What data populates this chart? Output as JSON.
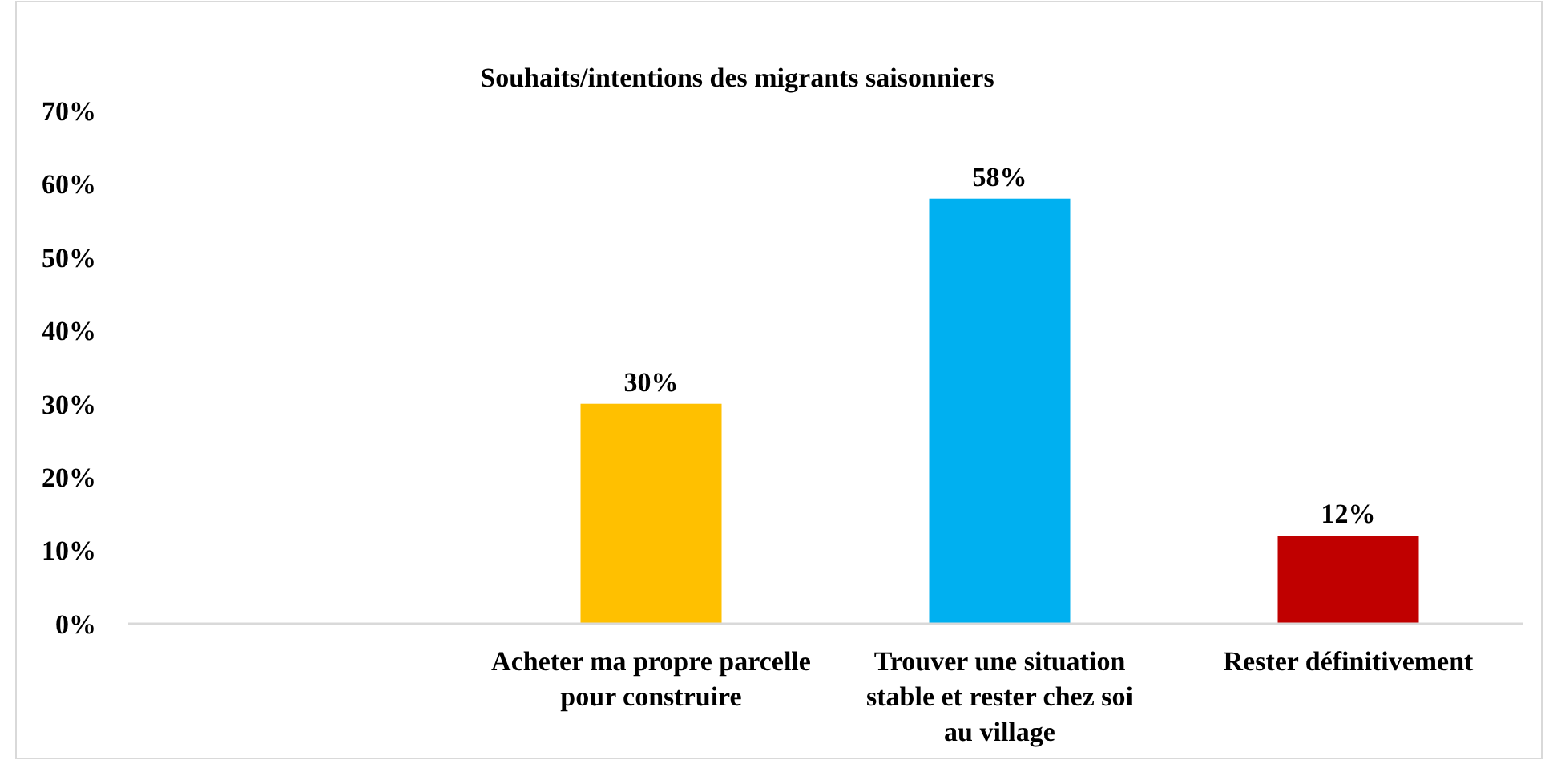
{
  "chart_data": {
    "type": "bar",
    "title": "Souhaits/intentions des migrants saisonniers",
    "categories": [
      null,
      "Acheter ma propre parcelle pour construire",
      "Trouver une situation stable et rester chez soi au village",
      "Rester définitivement"
    ],
    "values": [
      null,
      30,
      58,
      12
    ],
    "colors": [
      null,
      "#ffc000",
      "#00b0f0",
      "#c00000"
    ],
    "value_labels": [
      null,
      "30%",
      "58%",
      "12%"
    ],
    "ylim": [
      0,
      70
    ],
    "yticks": [
      {
        "value": 0,
        "label": "0%"
      },
      {
        "value": 10,
        "label": "10%"
      },
      {
        "value": 20,
        "label": "20%"
      },
      {
        "value": 30,
        "label": "30%"
      },
      {
        "value": 40,
        "label": "40%"
      },
      {
        "value": 50,
        "label": "50%"
      },
      {
        "value": 60,
        "label": "60%"
      },
      {
        "value": 70,
        "label": "70%"
      }
    ],
    "grid": false
  }
}
